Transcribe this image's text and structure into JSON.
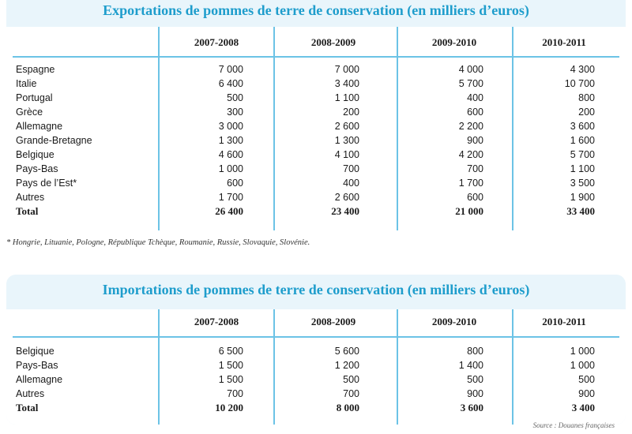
{
  "columns": [
    "2007-2008",
    "2008-2009",
    "2009-2010",
    "2010-2011"
  ],
  "exports": {
    "title": "Exportations de pommes de terre de conservation (en milliers d’euros)",
    "rows": [
      {
        "label": "Espagne",
        "values": [
          "7 000",
          "7 000",
          "4 000",
          "4 300"
        ]
      },
      {
        "label": "Italie",
        "values": [
          "6 400",
          "3 400",
          "5 700",
          "10 700"
        ]
      },
      {
        "label": "Portugal",
        "values": [
          "500",
          "1 100",
          "400",
          "800"
        ]
      },
      {
        "label": "Grèce",
        "values": [
          "300",
          "200",
          "600",
          "200"
        ]
      },
      {
        "label": "Allemagne",
        "values": [
          "3 000",
          "2 600",
          "2 200",
          "3 600"
        ]
      },
      {
        "label": "Grande-Bretagne",
        "values": [
          "1 300",
          "1 300",
          "900",
          "1 600"
        ]
      },
      {
        "label": "Belgique",
        "values": [
          "4 600",
          "4 100",
          "4 200",
          "5 700"
        ]
      },
      {
        "label": "Pays-Bas",
        "values": [
          "1 000",
          "700",
          "700",
          "1 100"
        ]
      },
      {
        "label": "Pays de l’Est*",
        "values": [
          "600",
          "400",
          "1 700",
          "3 500"
        ]
      },
      {
        "label": "Autres",
        "values": [
          "1 700",
          "2 600",
          "600",
          "1 900"
        ]
      }
    ],
    "total": {
      "label": "Total",
      "values": [
        "26 400",
        "23 400",
        "21 000",
        "33 400"
      ]
    },
    "footnote": "* Hongrie, Lituanie, Pologne, République Tchèque, Roumanie, Russie, Slovaquie, Slovénie."
  },
  "imports": {
    "title": "Importations de pommes de terre de conservation (en milliers d’euros)",
    "rows": [
      {
        "label": "Belgique",
        "values": [
          "6 500",
          "5 600",
          "800",
          "1 000"
        ]
      },
      {
        "label": "Pays-Bas",
        "values": [
          "1 500",
          "1 200",
          "1 400",
          "1 000"
        ]
      },
      {
        "label": "Allemagne",
        "values": [
          "1 500",
          "500",
          "500",
          "500"
        ]
      },
      {
        "label": "Autres",
        "values": [
          "700",
          "700",
          "900",
          "900"
        ]
      }
    ],
    "total": {
      "label": "Total",
      "values": [
        "10 200",
        "8 000",
        "3 600",
        "3 400"
      ]
    },
    "source": "Source : Douanes françaises"
  },
  "colors": {
    "accent": "#1e9dcc",
    "rule": "#6cc3e6",
    "panel": "#e9f5fb"
  }
}
